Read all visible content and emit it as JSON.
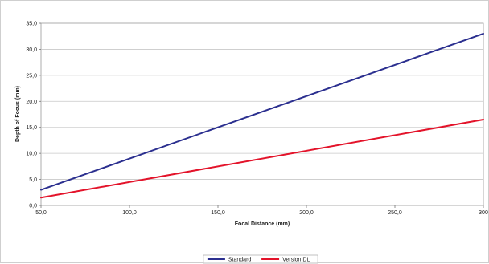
{
  "chart_data": {
    "type": "line",
    "title": "",
    "xlabel": "Focal Distance (mm)",
    "ylabel": "Depth of Focus (mm)",
    "xlim": [
      50,
      300
    ],
    "ylim": [
      0,
      35
    ],
    "x_ticks": [
      50,
      100,
      150,
      200,
      250,
      300
    ],
    "x_tick_labels": [
      "50,0",
      "100,0",
      "150,0",
      "200,0",
      "250,0",
      "300"
    ],
    "y_ticks": [
      0,
      5,
      10,
      15,
      20,
      25,
      30,
      35
    ],
    "y_tick_labels": [
      "0,0",
      "5,0",
      "10,0",
      "15,0",
      "20,0",
      "25,0",
      "30,0",
      "35,0"
    ],
    "grid": "horizontal",
    "legend_position": "bottom",
    "series": [
      {
        "name": "Standard",
        "color": "#2b2f8f",
        "x": [
          50,
          300
        ],
        "y": [
          3.0,
          33.0
        ]
      },
      {
        "name": "Version DL",
        "color": "#e3132a",
        "x": [
          50,
          300
        ],
        "y": [
          1.5,
          16.5
        ]
      }
    ]
  }
}
